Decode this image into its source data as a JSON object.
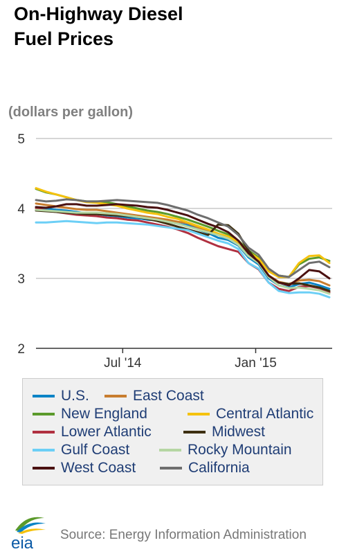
{
  "header": {
    "title_line1": "On-Highway Diesel",
    "title_line2": "Fuel Prices",
    "unit": "(dollars per gallon)"
  },
  "footer": {
    "logo_text": "eia",
    "source": "Source: Energy Information Administration"
  },
  "chart_data": {
    "type": "line",
    "title": "On-Highway Diesel Fuel Prices",
    "ylabel": "(dollars per gallon)",
    "xlabel": "",
    "ylim": [
      2,
      5
    ],
    "y_ticks": [
      2,
      3,
      4,
      5
    ],
    "x_ticks": [
      "Jul '14",
      "Jan '15"
    ],
    "grid": "horizontal",
    "legend_position": "bottom",
    "x": [
      "2014-03-03",
      "2014-03-17",
      "2014-03-31",
      "2014-04-14",
      "2014-04-28",
      "2014-05-12",
      "2014-05-26",
      "2014-06-09",
      "2014-06-23",
      "2014-07-07",
      "2014-07-21",
      "2014-08-04",
      "2014-08-18",
      "2014-09-01",
      "2014-09-15",
      "2014-09-29",
      "2014-10-13",
      "2014-10-27",
      "2014-11-10",
      "2014-11-24",
      "2014-12-08",
      "2014-12-22",
      "2015-01-05",
      "2015-01-19",
      "2015-02-02",
      "2015-02-16",
      "2015-03-02",
      "2015-03-16",
      "2015-03-30",
      "2015-04-13"
    ],
    "series": [
      {
        "name": "U.S.",
        "color": "#0b84c6",
        "values": [
          4.02,
          4.0,
          3.98,
          3.97,
          3.95,
          3.93,
          3.92,
          3.9,
          3.89,
          3.87,
          3.86,
          3.84,
          3.83,
          3.81,
          3.78,
          3.76,
          3.7,
          3.65,
          3.58,
          3.55,
          3.47,
          3.3,
          3.2,
          3.0,
          2.9,
          2.87,
          2.92,
          2.94,
          2.9,
          2.85
        ]
      },
      {
        "name": "East Coast",
        "color": "#c87d2f",
        "values": [
          4.07,
          4.05,
          4.03,
          4.01,
          3.99,
          3.98,
          3.98,
          3.96,
          3.94,
          3.92,
          3.9,
          3.88,
          3.86,
          3.84,
          3.81,
          3.79,
          3.73,
          3.68,
          3.62,
          3.58,
          3.5,
          3.34,
          3.24,
          3.04,
          2.95,
          2.92,
          2.97,
          2.98,
          2.96,
          2.9
        ]
      },
      {
        "name": "New England",
        "color": "#5b9a2b",
        "values": [
          4.28,
          4.23,
          4.2,
          4.16,
          4.12,
          4.1,
          4.1,
          4.09,
          4.06,
          4.03,
          4.0,
          3.97,
          3.95,
          3.92,
          3.88,
          3.84,
          3.79,
          3.74,
          3.68,
          3.63,
          3.54,
          3.4,
          3.3,
          3.13,
          3.04,
          3.02,
          3.2,
          3.28,
          3.3,
          3.25
        ]
      },
      {
        "name": "Central Atlantic",
        "color": "#f5c20e",
        "values": [
          4.29,
          4.24,
          4.2,
          4.16,
          4.12,
          4.09,
          4.08,
          4.06,
          4.04,
          4.0,
          3.97,
          3.94,
          3.92,
          3.88,
          3.85,
          3.8,
          3.75,
          3.7,
          3.64,
          3.6,
          3.52,
          3.38,
          3.28,
          3.1,
          3.02,
          3.02,
          3.22,
          3.32,
          3.33,
          3.22
        ]
      },
      {
        "name": "Lower Atlantic",
        "color": "#b03040",
        "values": [
          4.0,
          3.97,
          3.95,
          3.93,
          3.91,
          3.9,
          3.89,
          3.87,
          3.86,
          3.84,
          3.83,
          3.8,
          3.77,
          3.74,
          3.7,
          3.65,
          3.58,
          3.52,
          3.46,
          3.42,
          3.38,
          3.22,
          3.13,
          2.94,
          2.85,
          2.82,
          2.88,
          2.89,
          2.86,
          2.8
        ]
      },
      {
        "name": "Midwest",
        "color": "#3d2f10",
        "values": [
          3.97,
          3.96,
          3.95,
          3.94,
          3.93,
          3.92,
          3.92,
          3.91,
          3.9,
          3.89,
          3.88,
          3.85,
          3.82,
          3.78,
          3.74,
          3.7,
          3.66,
          3.62,
          3.77,
          3.76,
          3.64,
          3.4,
          3.22,
          3.02,
          2.94,
          2.92,
          2.93,
          2.9,
          2.87,
          2.82
        ]
      },
      {
        "name": "Gulf Coast",
        "color": "#6ccff6",
        "values": [
          3.8,
          3.8,
          3.81,
          3.82,
          3.81,
          3.8,
          3.79,
          3.8,
          3.8,
          3.79,
          3.78,
          3.77,
          3.75,
          3.73,
          3.71,
          3.69,
          3.64,
          3.59,
          3.54,
          3.5,
          3.42,
          3.22,
          3.14,
          2.94,
          2.82,
          2.79,
          2.8,
          2.8,
          2.78,
          2.73
        ]
      },
      {
        "name": "Rocky Mountain",
        "color": "#b5d6a3",
        "values": [
          3.98,
          3.97,
          3.96,
          3.95,
          3.94,
          3.94,
          3.94,
          3.93,
          3.92,
          3.9,
          3.88,
          3.86,
          3.84,
          3.81,
          3.78,
          3.74,
          3.7,
          3.66,
          3.62,
          3.57,
          3.48,
          3.32,
          3.22,
          3.02,
          2.9,
          2.86,
          2.87,
          2.85,
          2.83,
          2.78
        ]
      },
      {
        "name": "West Coast",
        "color": "#4a1010",
        "values": [
          4.02,
          4.01,
          4.03,
          4.06,
          4.06,
          4.04,
          4.04,
          4.05,
          4.06,
          4.05,
          4.04,
          4.02,
          4.01,
          3.98,
          3.94,
          3.9,
          3.84,
          3.78,
          3.73,
          3.66,
          3.54,
          3.36,
          3.24,
          3.04,
          2.94,
          2.9,
          3.0,
          3.12,
          3.1,
          3.0
        ]
      },
      {
        "name": "California",
        "color": "#6e6e6e",
        "values": [
          4.12,
          4.1,
          4.11,
          4.13,
          4.12,
          4.1,
          4.1,
          4.11,
          4.12,
          4.11,
          4.1,
          4.09,
          4.08,
          4.05,
          4.01,
          3.97,
          3.91,
          3.86,
          3.8,
          3.74,
          3.62,
          3.44,
          3.34,
          3.14,
          3.04,
          3.02,
          3.12,
          3.22,
          3.24,
          3.16
        ]
      }
    ]
  }
}
